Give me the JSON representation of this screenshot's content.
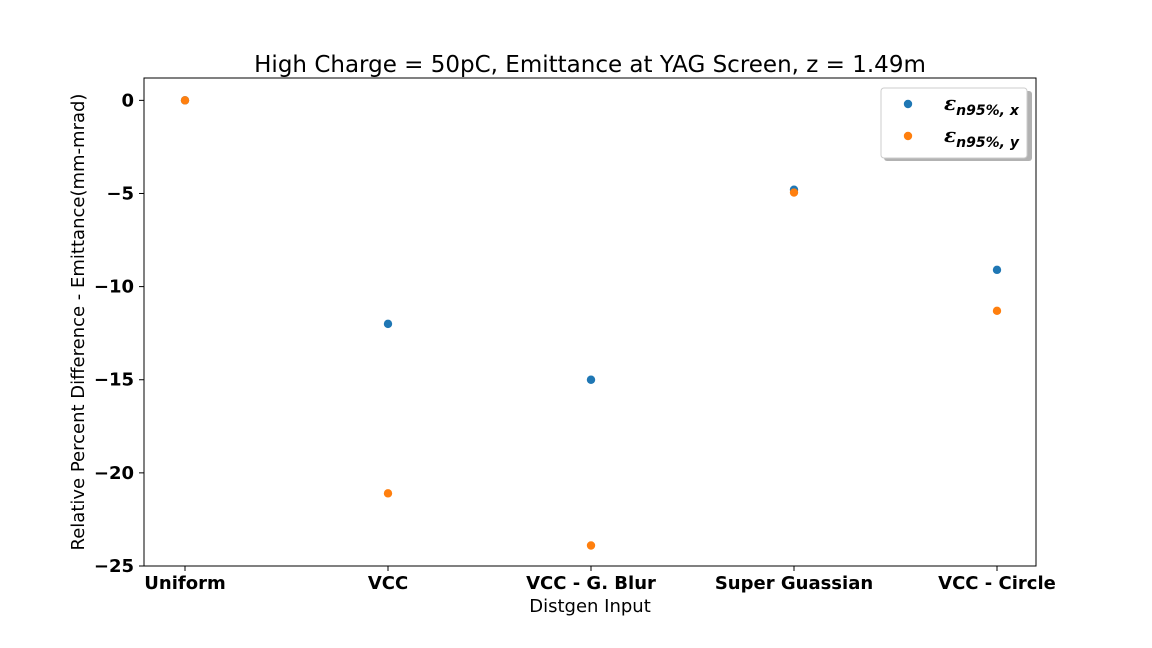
{
  "chart_data": {
    "type": "scatter",
    "title": "High Charge = 50pC, Emittance at YAG Screen, z = 1.49m",
    "xlabel": "Distgen Input",
    "ylabel": "Relative Percent Difference - Emittance(mm-mrad)",
    "categories": [
      "Uniform",
      "VCC",
      "VCC - G. Blur",
      "Super Guassian",
      "VCC - Circle"
    ],
    "yticks": [
      0,
      -5,
      -10,
      -15,
      -20,
      -25
    ],
    "ylim": [
      -25,
      1.2
    ],
    "grid": false,
    "legend_position": "top-right",
    "series": [
      {
        "name": "εn95%,x",
        "name_main": "ε",
        "name_sub": "n95%, x",
        "color": "#1f77b4",
        "values": [
          0,
          -12.0,
          -15.0,
          -4.8,
          -9.1
        ]
      },
      {
        "name": "εn95%,y",
        "name_main": "ε",
        "name_sub": "n95%, y",
        "color": "#ff7f0e",
        "values": [
          0,
          -21.1,
          -23.9,
          -4.95,
          -11.3
        ]
      }
    ]
  }
}
